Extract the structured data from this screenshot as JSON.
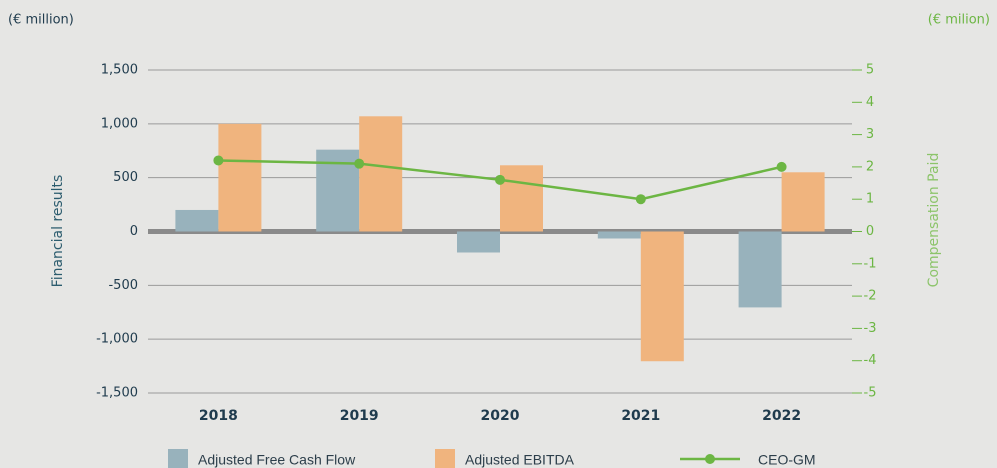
{
  "chart_data": {
    "type": "bar",
    "unit_left": "(€ million)",
    "unit_right": "(€ milion)",
    "ylabel": "Financial results",
    "y2label": "Compensation Paid",
    "categories": [
      "2018",
      "2019",
      "2020",
      "2021",
      "2022"
    ],
    "series": [
      {
        "name": "Adjusted Free Cash Flow",
        "color": "#98b2bc",
        "type": "bar",
        "values": [
          200,
          760,
          -195,
          -65,
          -705
        ]
      },
      {
        "name": "Adjusted EBITDA",
        "color": "#f0b47e",
        "type": "bar",
        "values": [
          1000,
          1070,
          615,
          -1205,
          550
        ]
      },
      {
        "name": "CEO-GM",
        "color": "#6cb643",
        "type": "line",
        "axis": "y2",
        "values": [
          2.2,
          2.1,
          1.6,
          1.0,
          2.0
        ]
      }
    ],
    "ylim": [
      -1500,
      1500
    ],
    "yticks": [
      {
        "value": -1500,
        "label": "-1,500"
      },
      {
        "value": -1000,
        "label": "-1,000"
      },
      -500,
      0,
      500,
      {
        "value": 1000,
        "label": "1,000"
      },
      {
        "value": 1500,
        "label": "1,500"
      }
    ],
    "y2lim": [
      -5,
      5
    ],
    "y2ticks": [
      -5,
      -4,
      -3,
      -2,
      -1,
      0,
      1,
      2,
      3,
      4,
      5
    ],
    "grid": true
  }
}
